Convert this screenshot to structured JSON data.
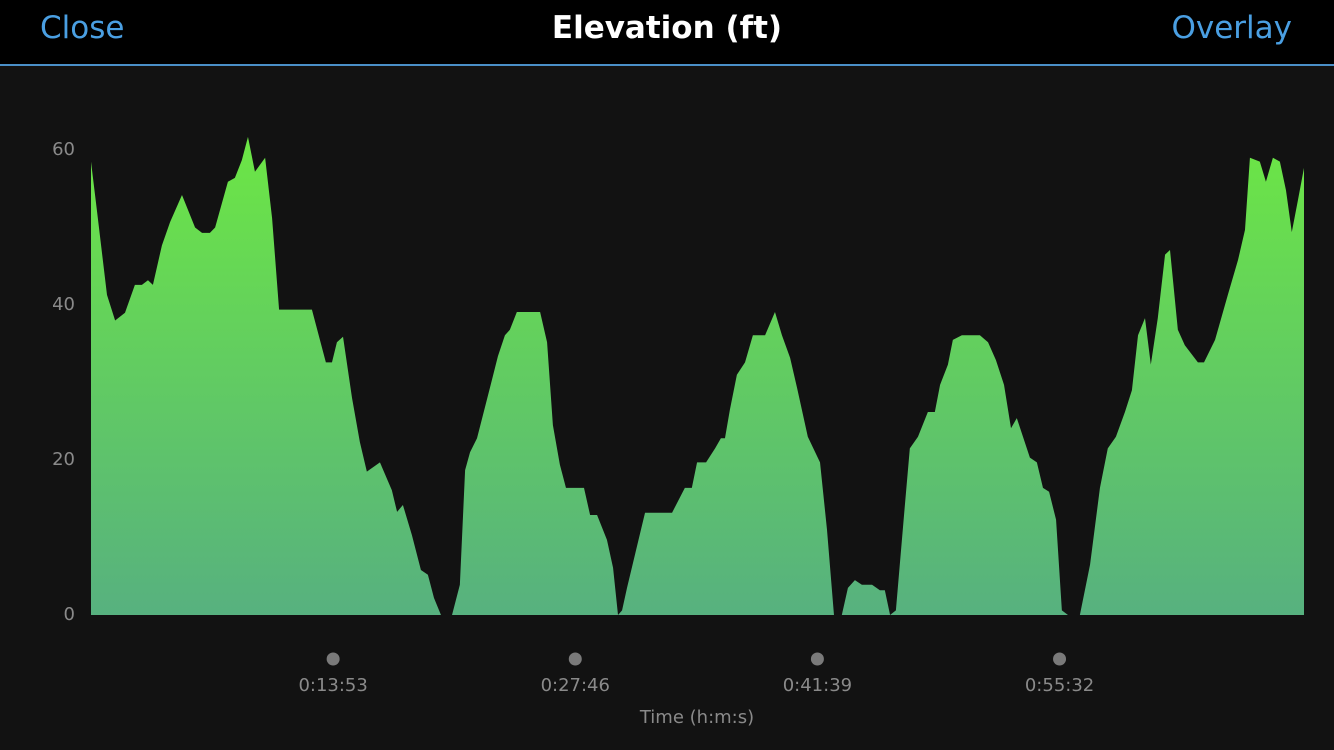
{
  "header": {
    "left_button": "Close",
    "title": "Elevation (ft)",
    "right_button": "Overlay"
  },
  "chart_data": {
    "type": "area",
    "x_label": "Time (h:m:s)",
    "x": [
      0,
      21,
      55,
      83,
      117,
      151,
      175,
      196,
      213,
      244,
      272,
      313,
      358,
      382,
      409,
      427,
      471,
      495,
      519,
      540,
      564,
      599,
      623,
      647,
      760,
      808,
      829,
      846,
      867,
      898,
      925,
      949,
      994,
      1035,
      1053,
      1073,
      1104,
      1135,
      1159,
      1180,
      1204,
      1242,
      1269,
      1287,
      1304,
      1328,
      1373,
      1400,
      1424,
      1441,
      1465,
      1545,
      1569,
      1589,
      1613,
      1634,
      1696,
      1717,
      1741,
      1775,
      1796,
      1813,
      1827,
      1844,
      1906,
      1999,
      2043,
      2067,
      2085,
      2116,
      2147,
      2167,
      2181,
      2198,
      2222,
      2250,
      2277,
      2319,
      2353,
      2377,
      2405,
      2429,
      2466,
      2508,
      2532,
      2556,
      2583,
      2604,
      2628,
      2652,
      2687,
      2714,
      2731,
      2749,
      2769,
      2800,
      2817,
      2845,
      2879,
      2903,
      2921,
      2948,
      2965,
      2996,
      3058,
      3086,
      3113,
      3141,
      3165,
      3185,
      3230,
      3254,
      3275,
      3296,
      3320,
      3340,
      3361,
      3402,
      3437,
      3471,
      3498,
      3526,
      3557,
      3581,
      3602,
      3626,
      3646,
      3670,
      3695,
      3712,
      3739,
      3763,
      3808,
      3829,
      3867,
      3911,
      3946,
      3970,
      3987,
      4021,
      4042,
      4066,
      4090,
      4111,
      4131,
      4152,
      4173
    ],
    "values": [
      58.5,
      52,
      41.3,
      38,
      39,
      42.6,
      42.6,
      43.2,
      42.6,
      47.7,
      50.7,
      54.2,
      50,
      49.3,
      49.3,
      50,
      55.9,
      56.4,
      58.7,
      61.7,
      57.2,
      59,
      51.2,
      39.4,
      39.4,
      32.6,
      32.6,
      35.2,
      35.9,
      28,
      22.3,
      18.5,
      19.7,
      16.1,
      13.3,
      14.2,
      10.3,
      5.8,
      5.2,
      2.2,
      0,
      0,
      3.9,
      18.7,
      21,
      22.8,
      29.4,
      33.4,
      36.1,
      36.8,
      39.1,
      39.1,
      35.2,
      24.5,
      19.4,
      16.4,
      16.4,
      12.9,
      12.9,
      9.7,
      6.1,
      0,
      0.6,
      3.5,
      13.2,
      13.2,
      16.4,
      16.4,
      19.7,
      19.7,
      21.5,
      22.8,
      22.8,
      26.5,
      31,
      32.6,
      36.1,
      36.1,
      39.1,
      36.1,
      33.2,
      29.3,
      23,
      19.7,
      11,
      0,
      0,
      3.5,
      4.5,
      3.9,
      3.9,
      3.2,
      3.2,
      0,
      0.6,
      14.2,
      21.5,
      23,
      26.2,
      26.2,
      29.7,
      32.3,
      35.5,
      36.1,
      36.1,
      35.2,
      32.9,
      29.7,
      24.1,
      25.4,
      20.3,
      19.7,
      16.4,
      15.9,
      12.3,
      0.6,
      0,
      0,
      6.5,
      16.4,
      21.5,
      23,
      26.2,
      29,
      36.1,
      38.3,
      32.3,
      38.3,
      46.5,
      47.1,
      36.8,
      34.8,
      32.6,
      32.6,
      35.5,
      41.3,
      45.8,
      49.7,
      59,
      58.5,
      55.9,
      59,
      58.5,
      54.8,
      49.4,
      53.5,
      57.7
    ],
    "color_gradient": [
      "#6ce645",
      "#57b17f"
    ],
    "xlim": [
      0,
      4173
    ],
    "xticks": [
      {
        "value": 833,
        "label": "0:13:53"
      },
      {
        "value": 1666,
        "label": "0:27:46"
      },
      {
        "value": 2499,
        "label": "0:41:39"
      },
      {
        "value": 3332,
        "label": "0:55:32"
      }
    ],
    "ylim": [
      0,
      65
    ],
    "yticks": [
      0,
      20,
      40,
      60
    ]
  }
}
